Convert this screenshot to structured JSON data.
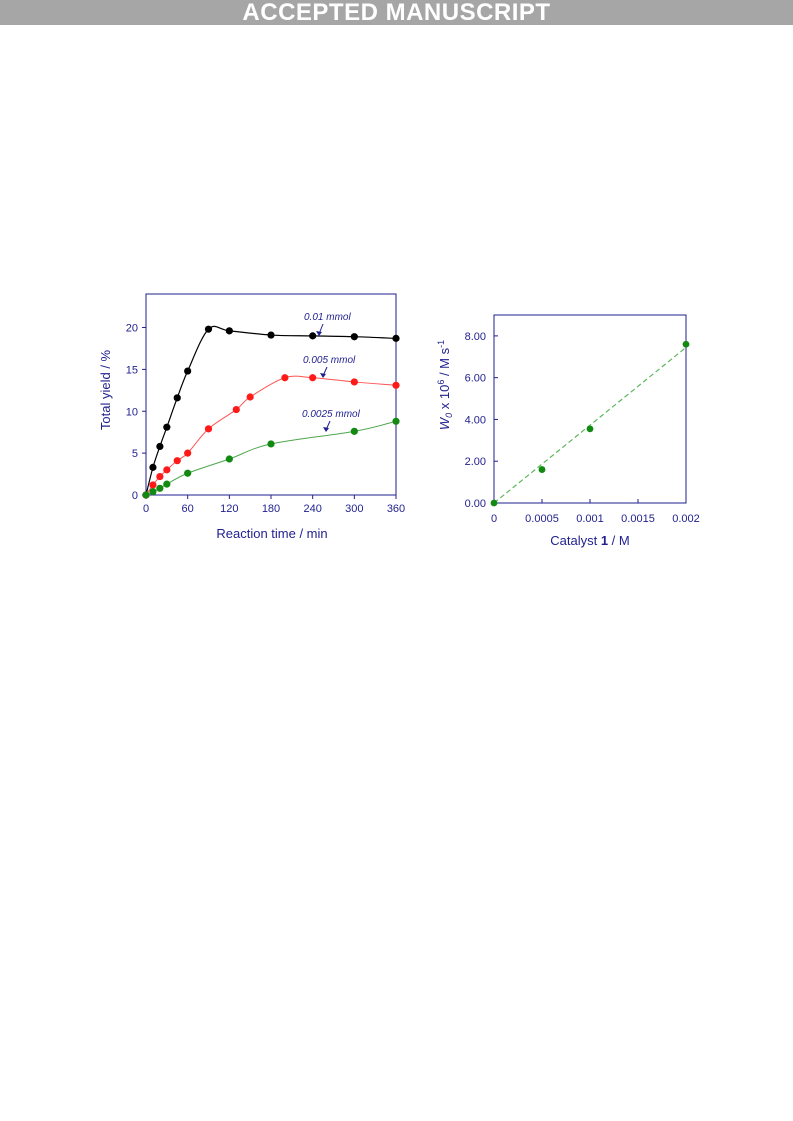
{
  "banner": "ACCEPTED MANUSCRIPT",
  "colors": {
    "axis": "#1f1f8f",
    "black": "#000000",
    "red": "#ff1a1a",
    "green": "#128a12",
    "banner_bg": "#a6a6a6"
  },
  "chart_data": [
    {
      "type": "scatter",
      "title": "",
      "xlabel": "Reaction time / min",
      "ylabel": "Total yield / %",
      "xlim": [
        0,
        360
      ],
      "ylim": [
        0,
        24
      ],
      "xticks": [
        0,
        60,
        120,
        180,
        240,
        300,
        360
      ],
      "yticks": [
        0,
        5,
        10,
        15,
        20
      ],
      "grid": false,
      "series": [
        {
          "name": "0.01 mmol",
          "color": "#000000",
          "x": [
            0,
            10,
            20,
            30,
            45,
            60,
            90,
            120,
            180,
            240,
            300,
            360
          ],
          "y": [
            0,
            3.3,
            5.8,
            8.1,
            11.6,
            14.8,
            19.8,
            19.6,
            19.1,
            19.0,
            18.9,
            18.7
          ]
        },
        {
          "name": "0.005 mmol",
          "color": "#ff1a1a",
          "x": [
            0,
            10,
            20,
            30,
            45,
            60,
            90,
            130,
            150,
            200,
            240,
            300,
            360
          ],
          "y": [
            0,
            1.2,
            2.2,
            3.0,
            4.1,
            5.0,
            7.9,
            10.2,
            11.7,
            14.0,
            14.0,
            13.5,
            13.1
          ]
        },
        {
          "name": "0.0025 mmol",
          "color": "#128a12",
          "x": [
            0,
            10,
            20,
            30,
            60,
            120,
            180,
            300,
            360
          ],
          "y": [
            0,
            0.4,
            0.8,
            1.3,
            2.6,
            4.3,
            6.1,
            7.6,
            8.8
          ]
        }
      ],
      "annotations": [
        "0.01 mmol",
        "0.005 mmol",
        "0.0025 mmol"
      ]
    },
    {
      "type": "scatter",
      "title": "",
      "xlabel_parts": [
        "Catalyst ",
        "1",
        " / M"
      ],
      "ylabel_parts": [
        "W",
        "0",
        " x 10",
        "6",
        " / M s",
        "-1"
      ],
      "xlim": [
        0,
        0.002
      ],
      "ylim": [
        0,
        9
      ],
      "xticks": [
        "0",
        "0.0005",
        "0.001",
        "0.0015",
        "0.002"
      ],
      "xtick_values": [
        0,
        0.0005,
        0.001,
        0.0015,
        0.002
      ],
      "yticks": [
        "0.00",
        "2.00",
        "4.00",
        "6.00",
        "8.00"
      ],
      "ytick_values": [
        0,
        2,
        4,
        6,
        8
      ],
      "grid": false,
      "trendline": "dashed-linear",
      "series": [
        {
          "color": "#128a12",
          "x": [
            0,
            0.0005,
            0.001,
            0.002
          ],
          "y": [
            0.0,
            1.6,
            3.55,
            7.6
          ]
        }
      ]
    }
  ]
}
